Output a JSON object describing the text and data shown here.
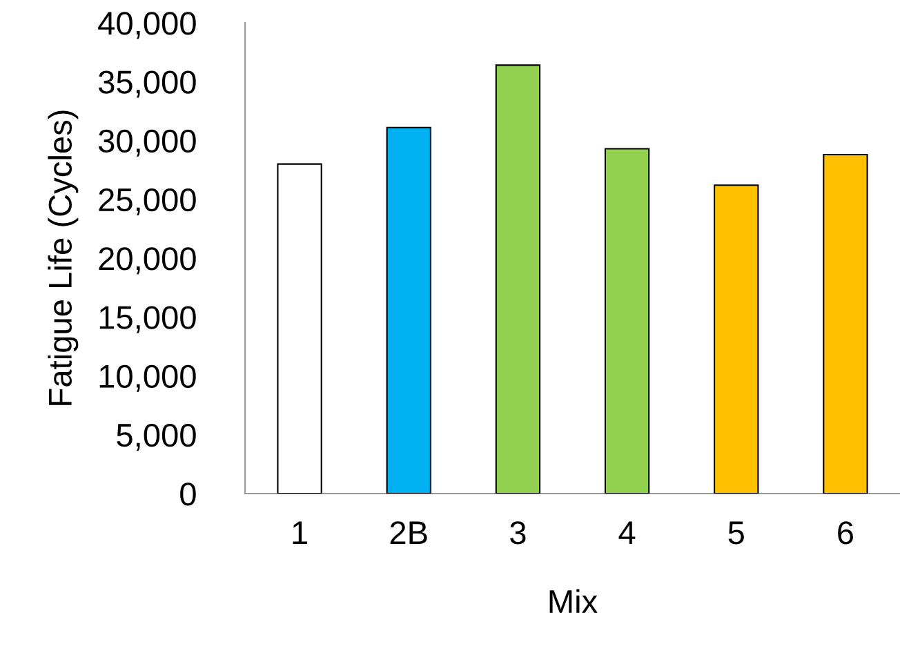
{
  "chart_data": {
    "type": "bar",
    "xlabel": "Mix",
    "ylabel": "Fatigue Life (Cycles)",
    "categories": [
      "1",
      "2B",
      "3",
      "4",
      "5",
      "6"
    ],
    "values": [
      28000,
      31100,
      36400,
      29300,
      26200,
      28800
    ],
    "colors": [
      "#ffffff",
      "#00b0f0",
      "#92d050",
      "#92d050",
      "#ffc000",
      "#ffc000"
    ],
    "ylim": [
      0,
      40000
    ],
    "yticks": [
      {
        "value": 0,
        "label": "0"
      },
      {
        "value": 5000,
        "label": "5,000"
      },
      {
        "value": 10000,
        "label": "10,000"
      },
      {
        "value": 15000,
        "label": "15,000"
      },
      {
        "value": 20000,
        "label": "20,000"
      },
      {
        "value": 25000,
        "label": "25,000"
      },
      {
        "value": 30000,
        "label": "30,000"
      },
      {
        "value": 35000,
        "label": "35,000"
      },
      {
        "value": 40000,
        "label": "40,000"
      }
    ],
    "grid": false,
    "legend": false
  }
}
